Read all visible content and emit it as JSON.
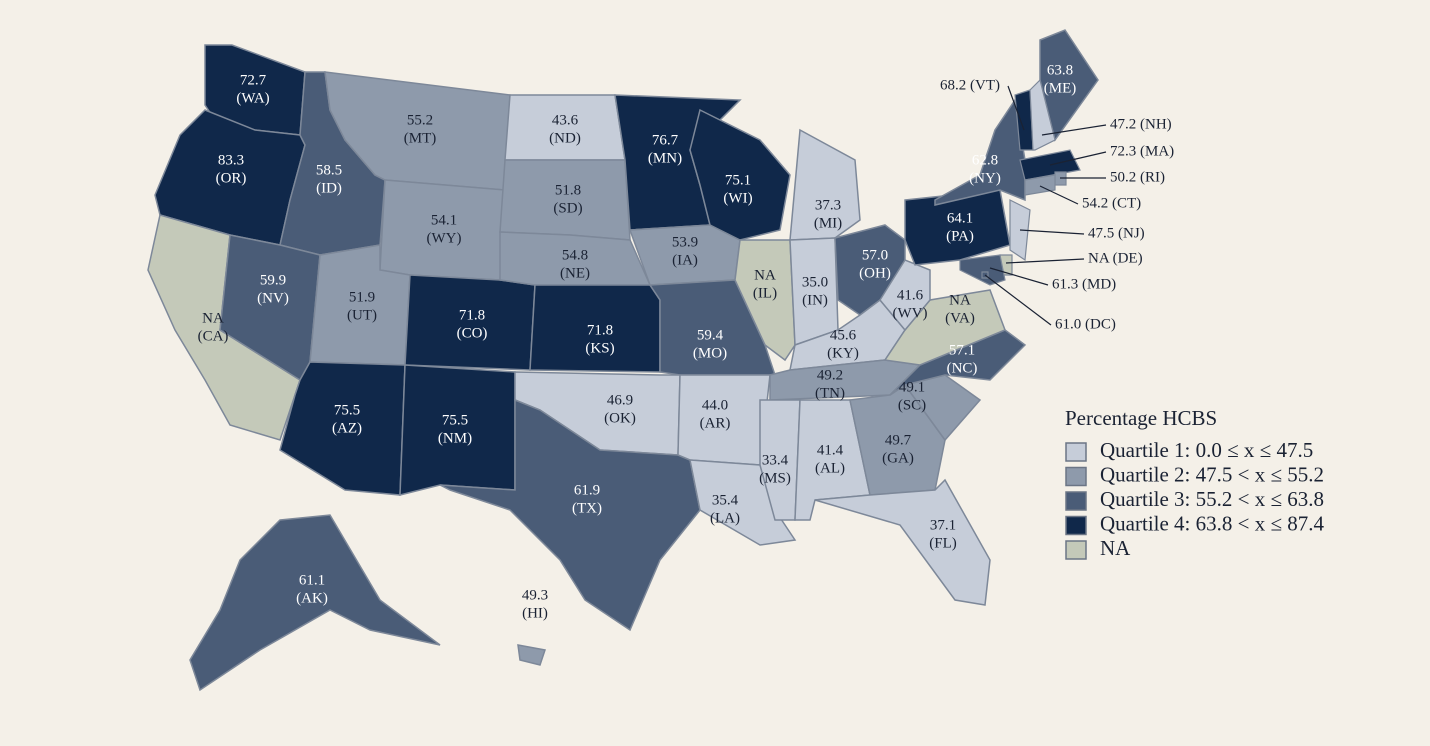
{
  "legend": {
    "title": "Percentage HCBS",
    "items": [
      {
        "label": "Quartile 1: 0.0 ≤ x ≤ 47.5",
        "color": "#c6cdd9"
      },
      {
        "label": "Quartile 2: 47.5 < x ≤ 55.2",
        "color": "#8e9aab"
      },
      {
        "label": "Quartile 3: 55.2 < x ≤ 63.8",
        "color": "#4a5c77"
      },
      {
        "label": "Quartile 4: 63.8 < x ≤ 87.4",
        "color": "#10284a"
      },
      {
        "label": "NA",
        "color": "#c4c9b9"
      }
    ]
  },
  "states": [
    {
      "value": "72.7",
      "abbr": "(WA)",
      "color": "#10284a"
    },
    {
      "value": "83.3",
      "abbr": "(OR)",
      "color": "#10284a"
    },
    {
      "value": "NA",
      "abbr": "(CA)",
      "color": "#c4c9b9"
    },
    {
      "value": "58.5",
      "abbr": "(ID)",
      "color": "#4a5c77"
    },
    {
      "value": "59.9",
      "abbr": "(NV)",
      "color": "#4a5c77"
    },
    {
      "value": "55.2",
      "abbr": "(MT)",
      "color": "#8e9aab"
    },
    {
      "value": "54.1",
      "abbr": "(WY)",
      "color": "#8e9aab"
    },
    {
      "value": "51.9",
      "abbr": "(UT)",
      "color": "#8e9aab"
    },
    {
      "value": "75.5",
      "abbr": "(AZ)",
      "color": "#10284a"
    },
    {
      "value": "71.8",
      "abbr": "(CO)",
      "color": "#10284a"
    },
    {
      "value": "75.5",
      "abbr": "(NM)",
      "color": "#10284a"
    },
    {
      "value": "43.6",
      "abbr": "(ND)",
      "color": "#c6cdd9"
    },
    {
      "value": "51.8",
      "abbr": "(SD)",
      "color": "#8e9aab"
    },
    {
      "value": "54.8",
      "abbr": "(NE)",
      "color": "#8e9aab"
    },
    {
      "value": "71.8",
      "abbr": "(KS)",
      "color": "#10284a"
    },
    {
      "value": "46.9",
      "abbr": "(OK)",
      "color": "#c6cdd9"
    },
    {
      "value": "61.9",
      "abbr": "(TX)",
      "color": "#4a5c77"
    },
    {
      "value": "76.7",
      "abbr": "(MN)",
      "color": "#10284a"
    },
    {
      "value": "53.9",
      "abbr": "(IA)",
      "color": "#8e9aab"
    },
    {
      "value": "59.4",
      "abbr": "(MO)",
      "color": "#4a5c77"
    },
    {
      "value": "44.0",
      "abbr": "(AR)",
      "color": "#c6cdd9"
    },
    {
      "value": "35.4",
      "abbr": "(LA)",
      "color": "#c6cdd9"
    },
    {
      "value": "75.1",
      "abbr": "(WI)",
      "color": "#10284a"
    },
    {
      "value": "NA",
      "abbr": "(IL)",
      "color": "#c4c9b9"
    },
    {
      "value": "37.3",
      "abbr": "(MI)",
      "color": "#c6cdd9"
    },
    {
      "value": "35.0",
      "abbr": "(IN)",
      "color": "#c6cdd9"
    },
    {
      "value": "57.0",
      "abbr": "(OH)",
      "color": "#4a5c77"
    },
    {
      "value": "45.6",
      "abbr": "(KY)",
      "color": "#c6cdd9"
    },
    {
      "value": "49.2",
      "abbr": "(TN)",
      "color": "#8e9aab"
    },
    {
      "value": "33.4",
      "abbr": "(MS)",
      "color": "#c6cdd9"
    },
    {
      "value": "41.4",
      "abbr": "(AL)",
      "color": "#c6cdd9"
    },
    {
      "value": "49.7",
      "abbr": "(GA)",
      "color": "#8e9aab"
    },
    {
      "value": "37.1",
      "abbr": "(FL)",
      "color": "#c6cdd9"
    },
    {
      "value": "49.1",
      "abbr": "(SC)",
      "color": "#8e9aab"
    },
    {
      "value": "57.1",
      "abbr": "(NC)",
      "color": "#4a5c77"
    },
    {
      "value": "NA",
      "abbr": "(VA)",
      "color": "#c4c9b9"
    },
    {
      "value": "41.6",
      "abbr": "(WV)",
      "color": "#c6cdd9"
    },
    {
      "value": "64.1",
      "abbr": "(PA)",
      "color": "#10284a"
    },
    {
      "value": "62.8",
      "abbr": "(NY)",
      "color": "#4a5c77"
    },
    {
      "value": "63.8",
      "abbr": "(ME)",
      "color": "#4a5c77"
    },
    {
      "value": "61.1",
      "abbr": "(AK)",
      "color": "#4a5c77"
    },
    {
      "value": "49.3",
      "abbr": "(HI)",
      "color": "#8e9aab"
    }
  ],
  "callouts": [
    {
      "text": "68.2 (VT)",
      "color": "#10284a"
    },
    {
      "text": "47.2 (NH)",
      "color": "#c6cdd9"
    },
    {
      "text": "72.3 (MA)",
      "color": "#10284a"
    },
    {
      "text": "50.2 (RI)",
      "color": "#8e9aab"
    },
    {
      "text": "54.2 (CT)",
      "color": "#8e9aab"
    },
    {
      "text": "47.5 (NJ)",
      "color": "#c6cdd9"
    },
    {
      "text": "NA (DE)",
      "color": "#c4c9b9"
    },
    {
      "text": "61.3 (MD)",
      "color": "#4a5c77"
    },
    {
      "text": "61.0 (DC)",
      "color": "#4a5c77"
    }
  ]
}
